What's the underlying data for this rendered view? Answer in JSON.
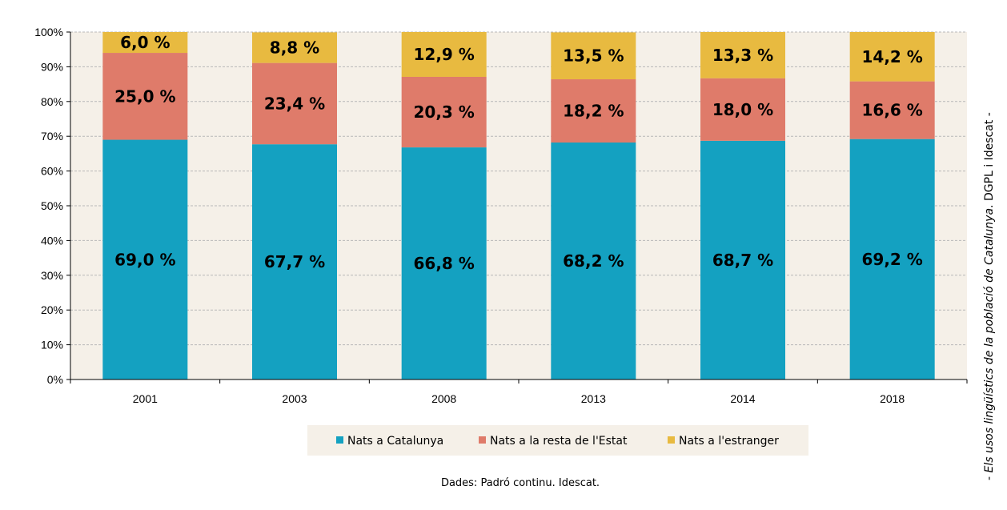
{
  "chart_data": {
    "type": "bar",
    "stacked": true,
    "categories": [
      "2001",
      "2003",
      "2008",
      "2013",
      "2014",
      "2018"
    ],
    "series": [
      {
        "name": "Nats a Catalunya",
        "color": "#14a1c1",
        "values": [
          69.0,
          67.7,
          66.8,
          68.2,
          68.7,
          69.2
        ],
        "labels": [
          "69,0 %",
          "67,7 %",
          "66,8 %",
          "68,2 %",
          "68,7 %",
          "69,2 %"
        ]
      },
      {
        "name": "Nats a la resta de l'Estat",
        "color": "#df7b6a",
        "values": [
          25.0,
          23.4,
          20.3,
          18.2,
          18.0,
          16.6
        ],
        "labels": [
          "25,0 %",
          "23,4 %",
          "20,3 %",
          "18,2 %",
          "18,0 %",
          "16,6 %"
        ]
      },
      {
        "name": "Nats a l'estranger",
        "color": "#e8ba40",
        "values": [
          6.0,
          8.8,
          12.9,
          13.5,
          13.3,
          14.2
        ],
        "labels": [
          "6,0 %",
          "8,8 %",
          "12,9 %",
          "13,5 %",
          "13,3 %",
          "14,2 %"
        ]
      }
    ],
    "ylim": [
      0,
      100
    ],
    "yticks": [
      0,
      10,
      20,
      30,
      40,
      50,
      60,
      70,
      80,
      90,
      100
    ],
    "ytick_labels": [
      "0%",
      "10%",
      "20%",
      "30%",
      "40%",
      "50%",
      "60%",
      "70%",
      "80%",
      "90%",
      "100%"
    ],
    "grid": true,
    "legend_position": "bottom",
    "plot_background": "#f5f0e8",
    "title": "",
    "xlabel": "",
    "ylabel": ""
  },
  "source": "Dades: Padró continu. Idescat.",
  "credit": {
    "prefix": "- ",
    "title": "Els usos lingüístics de la població de Catalunya",
    "suffix": ". DGPL i Idescat -"
  }
}
